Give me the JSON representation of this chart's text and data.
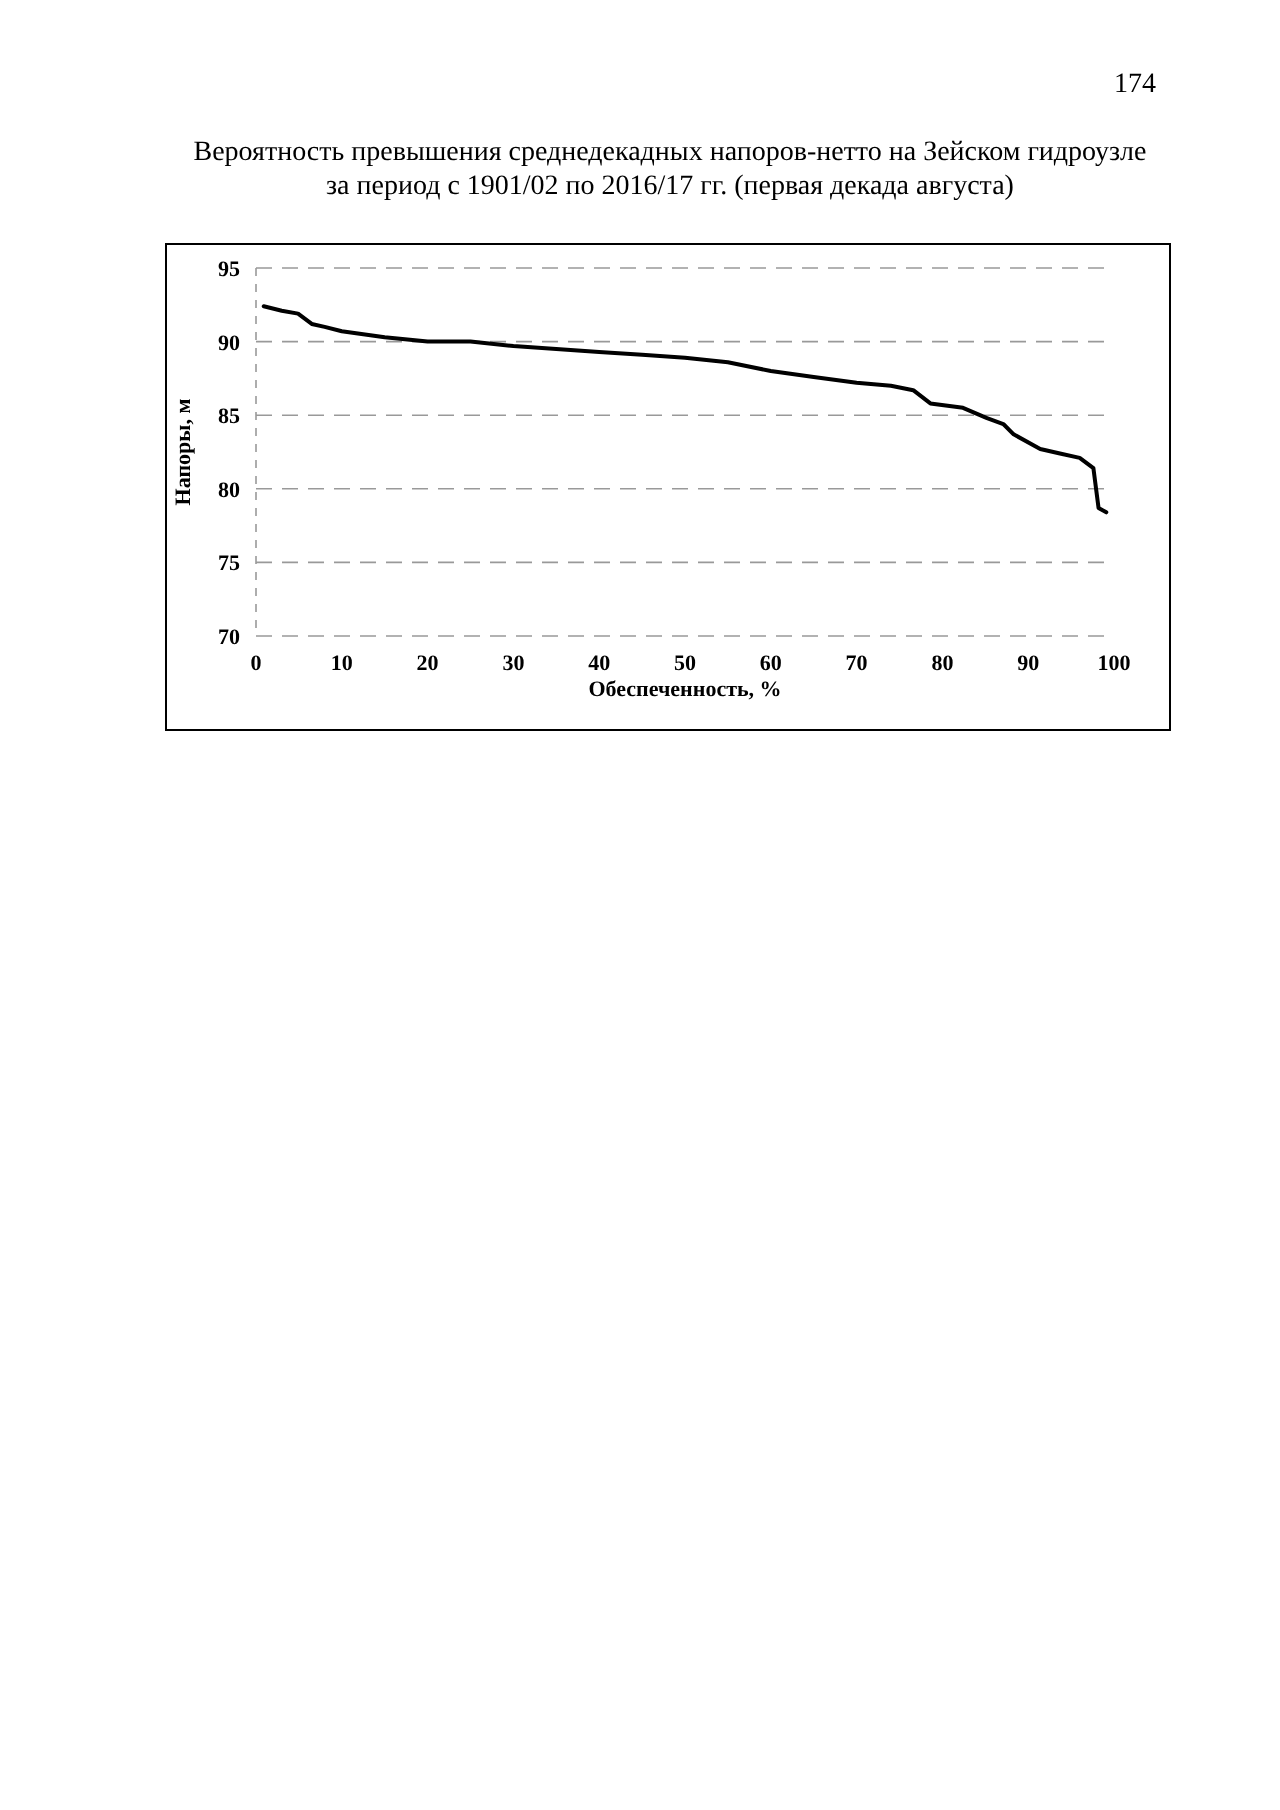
{
  "chart_data": {
    "type": "line",
    "title": "Вероятность превышения среднедекадных напоров-нетто на Зейском гидроузле\nза период с 1901/02 по 2016/17 гг. (первая декада августа)",
    "xlabel": "Обеспеченность, %",
    "ylabel": "Напоры, м",
    "annotations": [
      "174"
    ],
    "series": [
      {
        "color": "#000000",
        "x": [
          0.9,
          3,
          4.9,
          6.5,
          8,
          10,
          15,
          20,
          25,
          30,
          35,
          40,
          45,
          50,
          55,
          60,
          65,
          70,
          74,
          76.6,
          78.6,
          82.4,
          85.2,
          87.1,
          88.3,
          91.4,
          93.7,
          96,
          97.6,
          98.2,
          99.1
        ],
        "values": [
          92.4,
          92.1,
          91.9,
          91.2,
          91.0,
          90.7,
          90.3,
          90.0,
          90.0,
          89.7,
          89.5,
          89.3,
          89.1,
          88.9,
          88.6,
          88.0,
          87.6,
          87.2,
          87.0,
          86.7,
          85.8,
          85.5,
          84.8,
          84.4,
          83.7,
          82.7,
          82.4,
          82.1,
          81.4,
          78.7,
          78.4
        ]
      }
    ],
    "xlim": [
      0,
      100
    ],
    "xticks": [
      0,
      10,
      20,
      30,
      40,
      50,
      60,
      70,
      80,
      90,
      100
    ],
    "ylim": [
      70,
      95
    ],
    "yticks": [
      70,
      75,
      80,
      85,
      90,
      95
    ],
    "grid": "y",
    "marker": "none",
    "line_style": "solid"
  }
}
